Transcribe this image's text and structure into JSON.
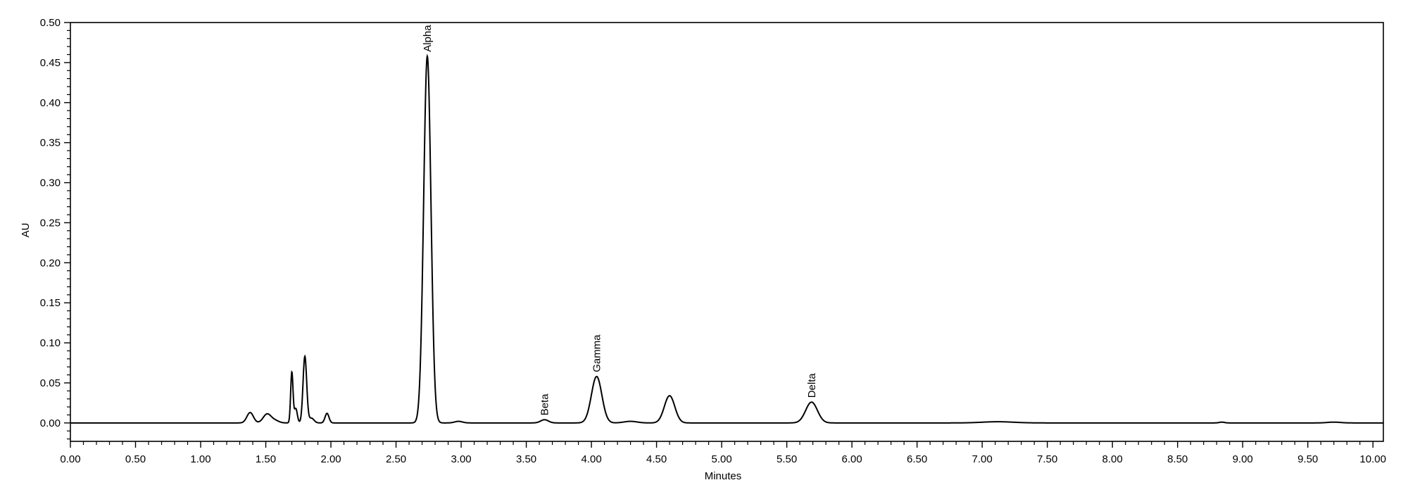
{
  "chart_data": {
    "type": "line",
    "xlabel": "Minutes",
    "ylabel": "AU",
    "xlim": [
      0.0,
      10.08
    ],
    "ylim": [
      -0.023,
      0.5
    ],
    "x_ticks": [
      "0.00",
      "0.50",
      "1.00",
      "1.50",
      "2.00",
      "2.50",
      "3.00",
      "3.50",
      "4.00",
      "4.50",
      "5.00",
      "5.50",
      "6.00",
      "6.50",
      "7.00",
      "7.50",
      "8.00",
      "8.50",
      "9.00",
      "9.50",
      "10.00"
    ],
    "y_ticks": [
      "0.00",
      "0.05",
      "0.10",
      "0.15",
      "0.20",
      "0.25",
      "0.30",
      "0.35",
      "0.40",
      "0.45",
      "0.50"
    ],
    "grid": false,
    "series": [
      {
        "peaks": [
          {
            "rt": 1.38,
            "height": 0.013,
            "width": 0.025
          },
          {
            "rt": 1.51,
            "height": 0.011,
            "width": 0.03
          },
          {
            "rt": 1.57,
            "height": 0.003,
            "width": 0.03
          },
          {
            "rt": 1.7,
            "height": 0.063,
            "width": 0.009
          },
          {
            "rt": 1.73,
            "height": 0.018,
            "width": 0.012
          },
          {
            "rt": 1.8,
            "height": 0.083,
            "width": 0.014
          },
          {
            "rt": 1.85,
            "height": 0.006,
            "width": 0.02
          },
          {
            "rt": 1.97,
            "height": 0.012,
            "width": 0.015
          },
          {
            "rt": 2.74,
            "height": 0.458,
            "width": 0.028
          },
          {
            "rt": 2.98,
            "height": 0.002,
            "width": 0.03
          },
          {
            "rt": 3.64,
            "height": 0.004,
            "width": 0.03
          },
          {
            "rt": 4.04,
            "height": 0.058,
            "width": 0.04
          },
          {
            "rt": 4.3,
            "height": 0.002,
            "width": 0.05
          },
          {
            "rt": 4.6,
            "height": 0.034,
            "width": 0.04
          },
          {
            "rt": 5.69,
            "height": 0.026,
            "width": 0.045
          },
          {
            "rt": 7.12,
            "height": 0.0015,
            "width": 0.12
          },
          {
            "rt": 8.84,
            "height": 0.001,
            "width": 0.02
          },
          {
            "rt": 9.7,
            "height": 0.001,
            "width": 0.05
          }
        ]
      }
    ],
    "annotations": [
      {
        "text": "Alpha",
        "x": 2.74,
        "y": 0.458
      },
      {
        "text": "Beta",
        "x": 3.64,
        "y": 0.004
      },
      {
        "text": "Gamma",
        "x": 4.04,
        "y": 0.058
      },
      {
        "text": "Delta",
        "x": 5.69,
        "y": 0.026
      }
    ]
  }
}
